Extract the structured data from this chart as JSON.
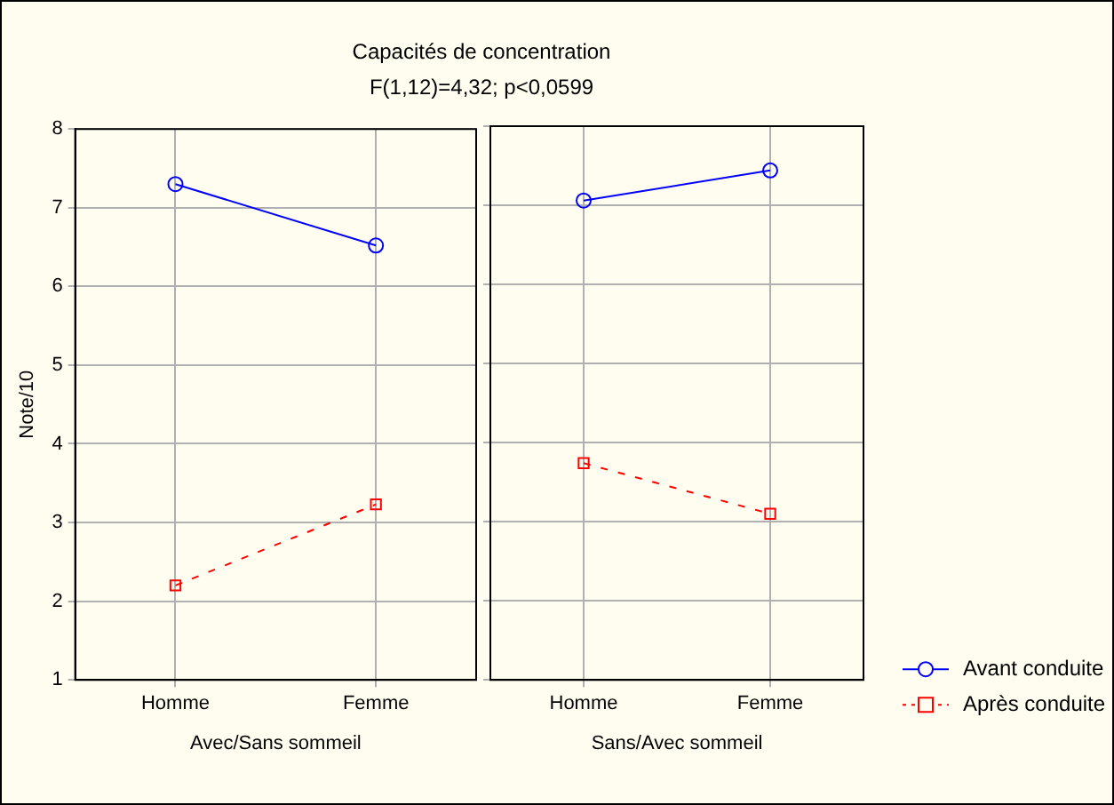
{
  "chart_data": [
    {
      "type": "line",
      "title": "Capacités de concentration",
      "subtitle": "F(1,12)=4,32; p<0,0599",
      "xlabel": "Avec/Sans sommeil",
      "ylabel": "Note/10",
      "categories": [
        "Homme",
        "Femme"
      ],
      "ylim": [
        1,
        8
      ],
      "yticks": [
        1,
        2,
        3,
        4,
        5,
        6,
        7,
        8
      ],
      "grid": true,
      "legend": false,
      "series": [
        {
          "color": "#0000ff",
          "values": [
            7.3,
            6.52
          ],
          "marker": "circle",
          "line_style": "solid"
        },
        {
          "color": "#ff0000",
          "values": [
            2.2,
            3.23
          ],
          "marker": "square",
          "line_style": "dashed"
        }
      ]
    },
    {
      "type": "line",
      "xlabel": "Sans/Avec sommeil",
      "categories": [
        "Homme",
        "Femme"
      ],
      "ylim": [
        1,
        8
      ],
      "yticks": [
        1,
        2,
        3,
        4,
        5,
        6,
        7,
        8
      ],
      "grid": true,
      "legend": "bottom right",
      "tick_labels": "x",
      "series": [
        {
          "name": "Avant conduite",
          "color": "#0000ff",
          "values": [
            7.06,
            7.44
          ],
          "marker": "circle",
          "line_style": "solid"
        },
        {
          "name": "Après conduite",
          "color": "#ff0000",
          "values": [
            3.74,
            3.1
          ],
          "marker": "square",
          "line_style": "dashed"
        }
      ]
    }
  ]
}
